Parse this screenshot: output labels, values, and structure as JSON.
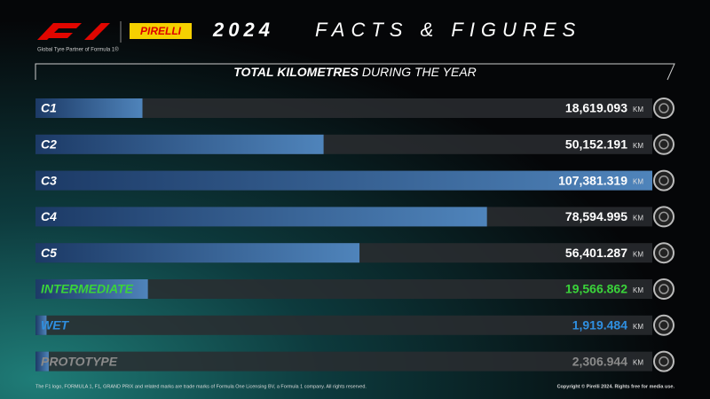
{
  "header": {
    "brand": "PIRELLI",
    "partner": "Global Tyre Partner of Formula 1®",
    "headline_year": "2024",
    "headline": "FACTS & FIGURES"
  },
  "chart_data": {
    "type": "bar",
    "orientation": "horizontal",
    "title_bold": "TOTAL KILOMETRES",
    "title_rest": "DURING THE YEAR",
    "unit": "KM",
    "categories": [
      "C1",
      "C2",
      "C3",
      "C4",
      "C5",
      "INTERMEDIATE",
      "WET",
      "PROTOTYPE"
    ],
    "values": [
      18619.093,
      50152.191,
      107381.319,
      78594.995,
      56401.287,
      19566.862,
      1919.484,
      2306.944
    ],
    "value_labels": [
      "18,619.093",
      "50,152.191",
      "107,381.319",
      "78,594.995",
      "56,401.287",
      "19,566.862",
      "1,919.484",
      "2,306.944"
    ],
    "label_colors": [
      "#ffffff",
      "#ffffff",
      "#ffffff",
      "#ffffff",
      "#ffffff",
      "#3ad43a",
      "#2f8fe0",
      "#8a8a8a"
    ],
    "color": "#3d6fa8"
  },
  "footer": {
    "left": "The F1 logo, FORMULA 1, F1, GRAND PRIX and related marks are trade marks of Formula One Licensing BV, a Formula 1 company. All rights reserved.",
    "right": "Copyright © Pirelli 2024. Rights free for media use."
  }
}
